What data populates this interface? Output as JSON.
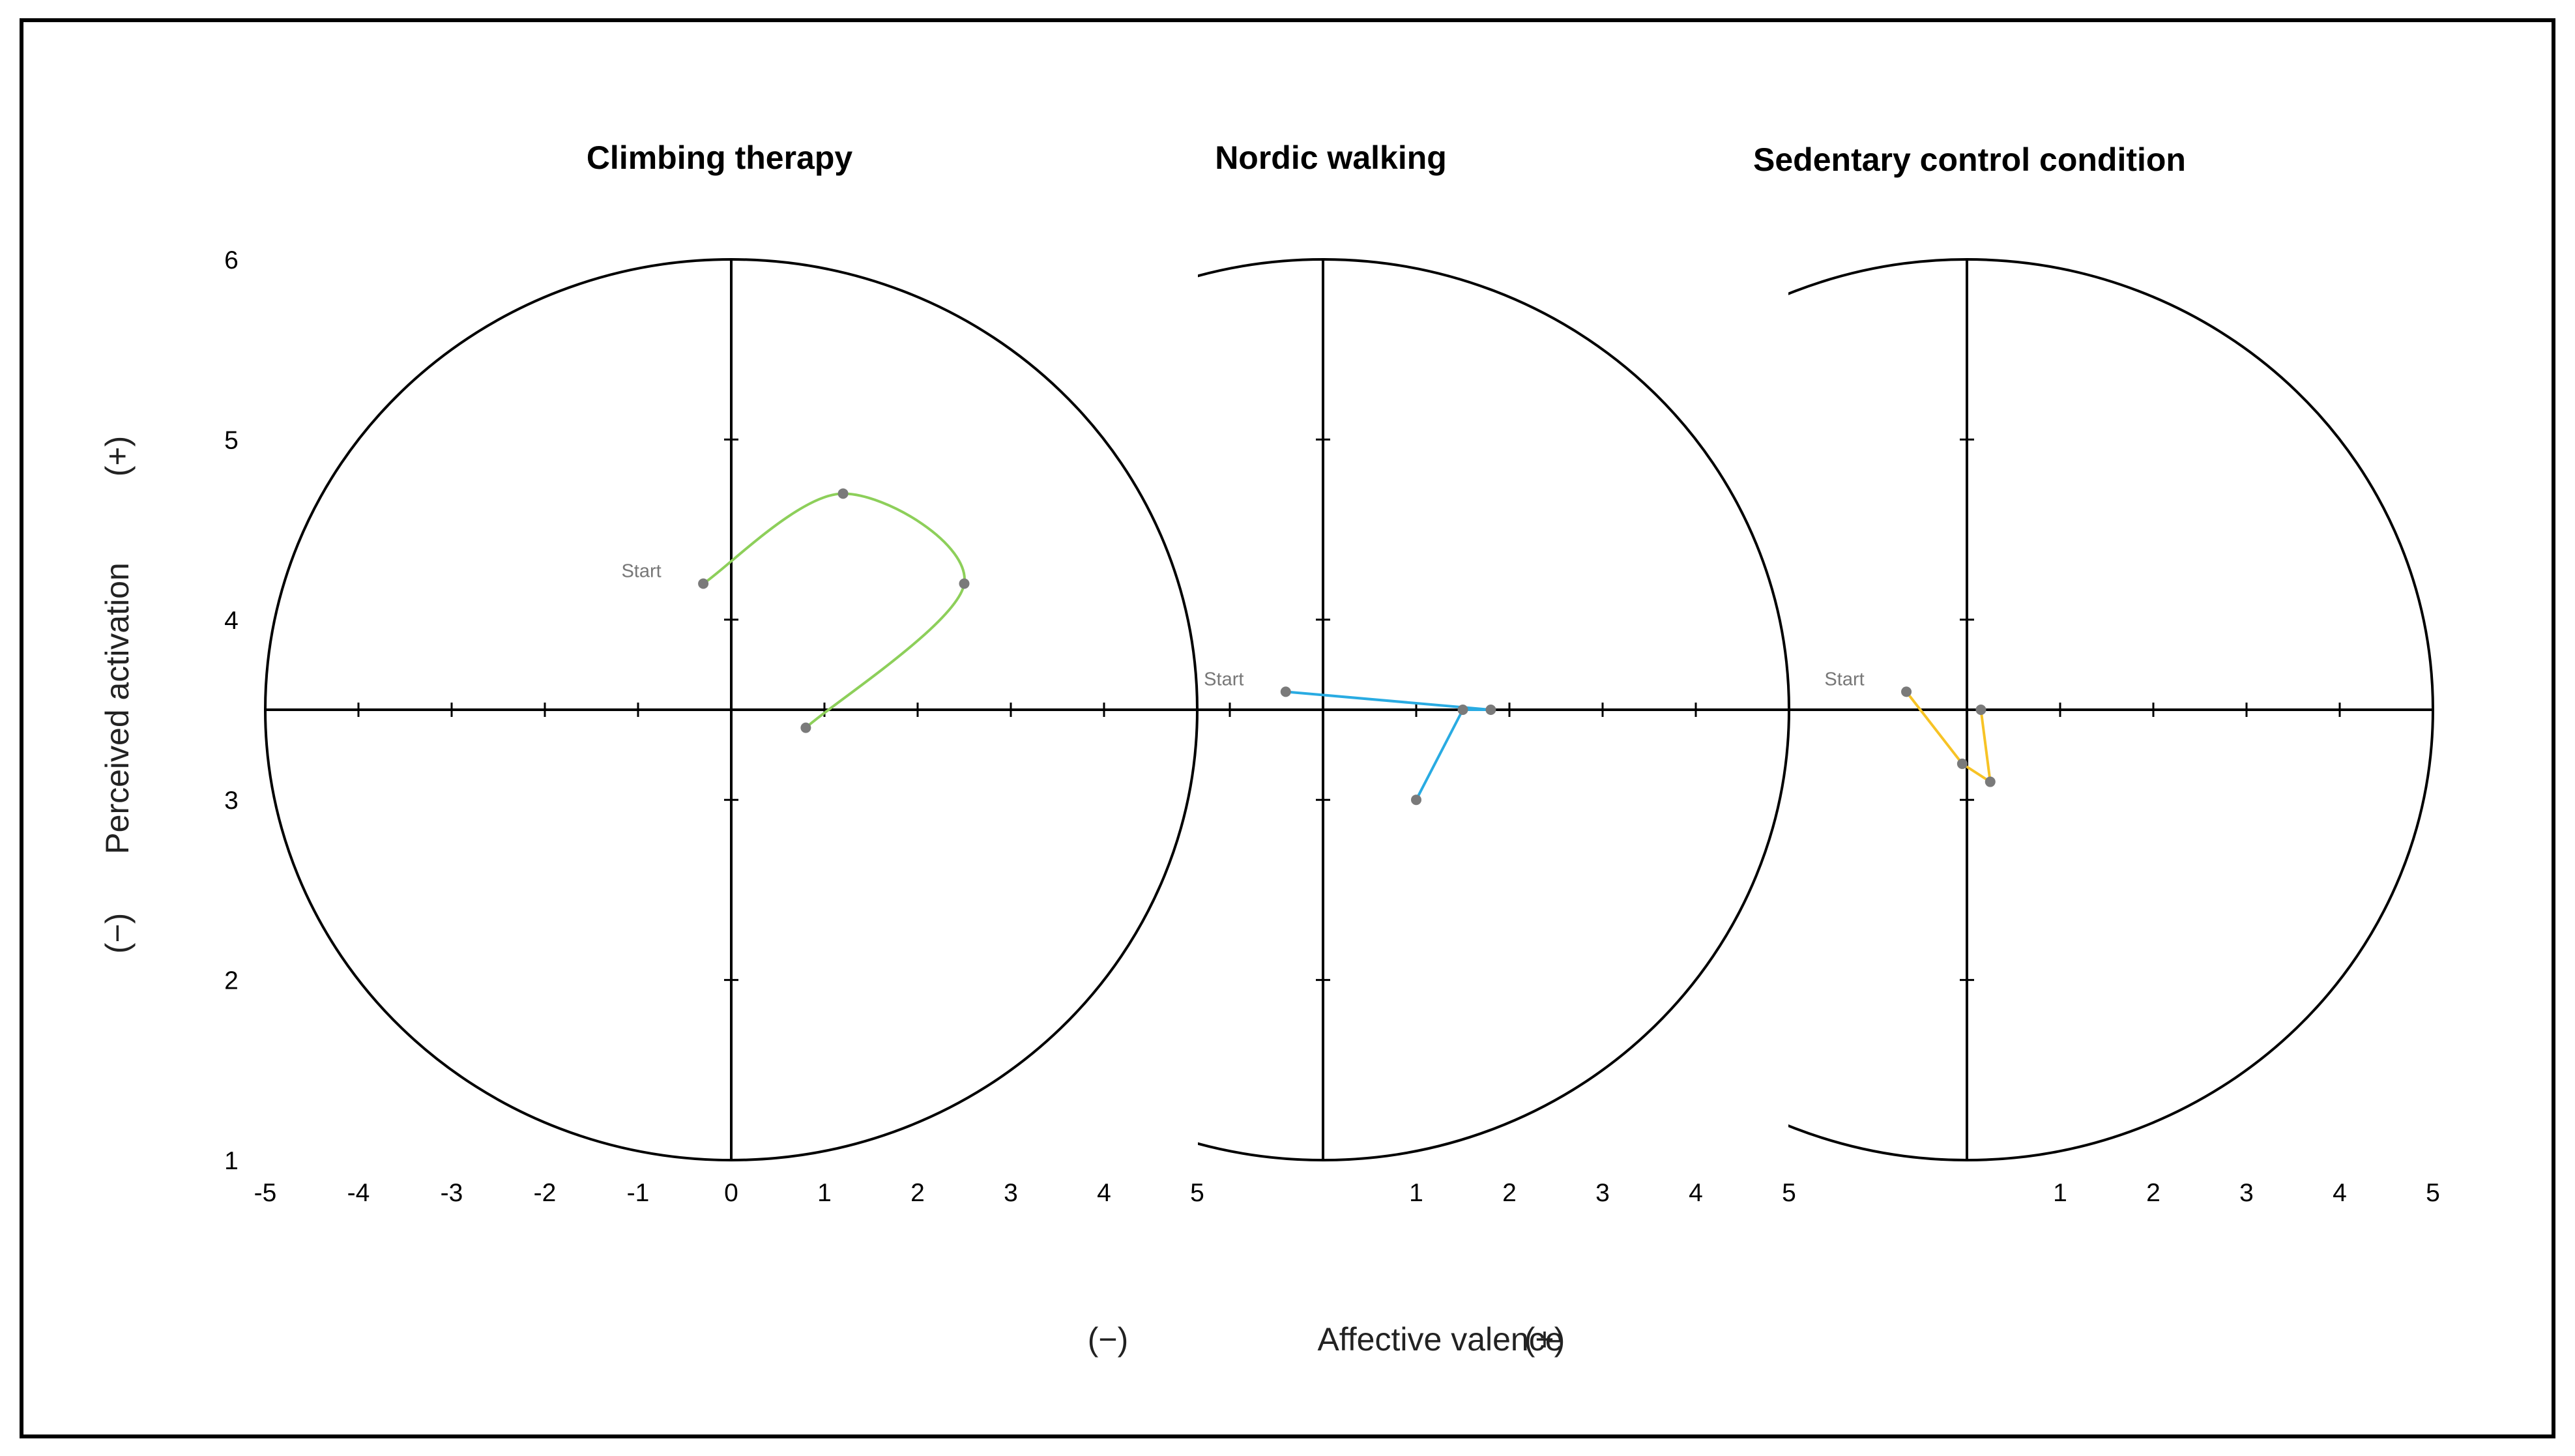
{
  "chart_data": {
    "type": "line",
    "ylabel": {
      "neg": "(−)",
      "text": "Perceived activation",
      "pos": "(+)"
    },
    "xlabel": {
      "neg": "(−)",
      "text": "Affective valence",
      "pos": "(+)"
    },
    "ylim": [
      1,
      6
    ],
    "y_ticks": [
      "1",
      "2",
      "3",
      "4",
      "5",
      "6"
    ],
    "xlim": [
      -5,
      5
    ],
    "start_label": "Start",
    "panels": [
      {
        "title": "Climbing therapy",
        "color": "#8dcf5a",
        "smooth": true,
        "x_ticks": [
          "-5",
          "-4",
          "-3",
          "-2",
          "-1",
          "0",
          "1",
          "2",
          "3",
          "4",
          "5"
        ],
        "points": [
          {
            "x": -0.3,
            "y": 4.2
          },
          {
            "x": 1.2,
            "y": 4.7
          },
          {
            "x": 2.5,
            "y": 4.2
          },
          {
            "x": 0.8,
            "y": 3.4
          }
        ]
      },
      {
        "title": "Nordic walking",
        "color": "#29abe2",
        "smooth": false,
        "x_ticks": [
          "",
          "",
          "1",
          "2",
          "3",
          "4",
          "5"
        ],
        "points": [
          {
            "x": -0.4,
            "y": 3.6
          },
          {
            "x": 1.8,
            "y": 3.5
          },
          {
            "x": 1.5,
            "y": 3.5
          },
          {
            "x": 1.0,
            "y": 3.0
          }
        ]
      },
      {
        "title": "Sedentary control condition",
        "color": "#f7c325",
        "smooth": false,
        "x_ticks": [
          "",
          "",
          "1",
          "2",
          "3",
          "4",
          "5"
        ],
        "points": [
          {
            "x": -0.65,
            "y": 3.6
          },
          {
            "x": -0.05,
            "y": 3.2
          },
          {
            "x": 0.25,
            "y": 3.1
          },
          {
            "x": 0.15,
            "y": 3.5
          }
        ]
      }
    ]
  }
}
